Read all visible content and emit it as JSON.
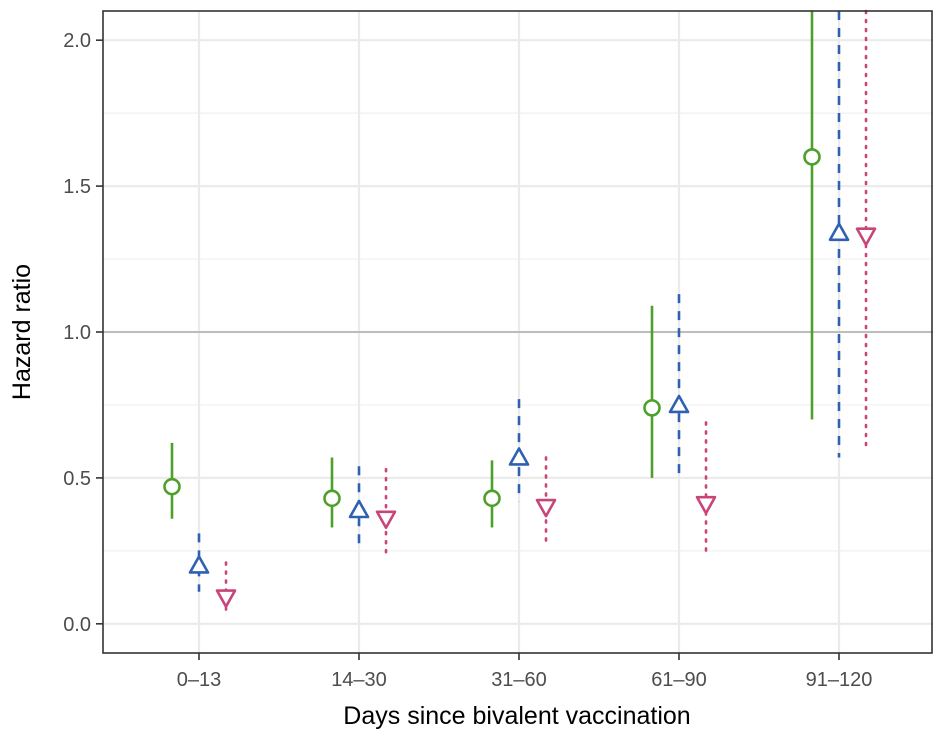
{
  "chart_data": {
    "type": "scatter",
    "xlabel": "Days since bivalent vaccination",
    "ylabel": "Hazard ratio",
    "categories": [
      "0–13",
      "14–30",
      "31–60",
      "61–90",
      "91–120"
    ],
    "ylim": [
      -0.1,
      2.1
    ],
    "yticks": [
      "0.0",
      "0.5",
      "1.0",
      "1.5",
      "2.0"
    ],
    "yticks_values": [
      0.0,
      0.5,
      1.0,
      1.5,
      2.0
    ],
    "reference_line": 1.0,
    "grid": true,
    "legend": "none",
    "series": [
      {
        "marker": "circle",
        "line_style": "solid",
        "color": "#4DA02A",
        "values": [
          0.47,
          0.43,
          0.43,
          0.74,
          1.6
        ],
        "lower": [
          0.36,
          0.33,
          0.33,
          0.5,
          0.7
        ],
        "upper": [
          0.62,
          0.57,
          0.56,
          1.09,
          2.1
        ]
      },
      {
        "marker": "triangle-up",
        "line_style": "dashed",
        "color": "#3060B0",
        "values": [
          0.2,
          0.39,
          0.57,
          0.75,
          1.34
        ],
        "lower": [
          0.11,
          0.26,
          0.42,
          0.49,
          0.57
        ],
        "upper": [
          0.31,
          0.54,
          0.77,
          1.13,
          2.1
        ]
      },
      {
        "marker": "triangle-down",
        "line_style": "dotted",
        "color": "#C8457A",
        "values": [
          0.09,
          0.36,
          0.4,
          0.41,
          1.33
        ],
        "lower": [
          0.03,
          0.24,
          0.28,
          0.25,
          0.6
        ],
        "upper": [
          0.21,
          0.53,
          0.57,
          0.69,
          2.1
        ]
      }
    ]
  }
}
